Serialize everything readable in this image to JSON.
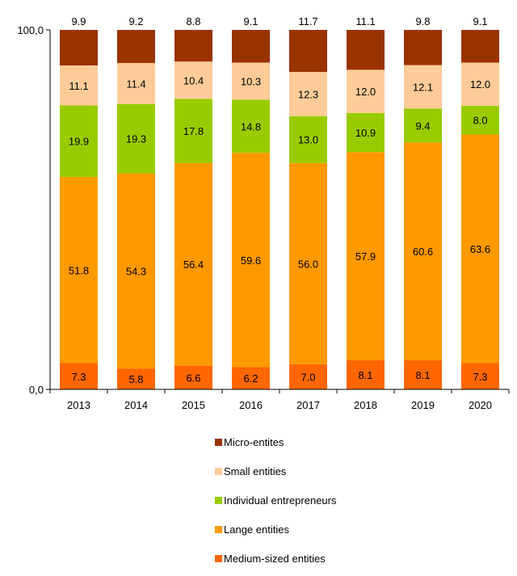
{
  "chart_data": {
    "type": "bar",
    "stacked": true,
    "categories": [
      "2013",
      "2014",
      "2015",
      "2016",
      "2017",
      "2018",
      "2019",
      "2020"
    ],
    "ylim": [
      0,
      100
    ],
    "y_tick_labels": [
      "0,0",
      "100,0"
    ],
    "grid": false,
    "legend_position": "bottom",
    "series": [
      {
        "name": "Medium-sized entities",
        "color": "#FF6600",
        "values": [
          7.3,
          5.8,
          6.6,
          6.2,
          7.0,
          8.1,
          8.1,
          7.3
        ]
      },
      {
        "name": "Lange entities",
        "color": "#FF9900",
        "values": [
          51.8,
          54.3,
          56.4,
          59.6,
          56.0,
          57.9,
          60.6,
          63.6
        ]
      },
      {
        "name": "Individual entrepreneurs",
        "color": "#99CC00",
        "values": [
          19.9,
          19.3,
          17.8,
          14.8,
          13.0,
          10.9,
          9.4,
          8.0
        ]
      },
      {
        "name": "Small entities",
        "color": "#FFCC99",
        "values": [
          11.1,
          11.4,
          10.4,
          10.3,
          12.3,
          12.0,
          12.1,
          12.0
        ]
      },
      {
        "name": "Micro-entites",
        "color": "#993300",
        "values": [
          9.9,
          9.2,
          8.8,
          9.1,
          11.7,
          11.1,
          9.8,
          9.1
        ]
      }
    ],
    "legend_order": [
      "Micro-entites",
      "Small entities",
      "Individual entrepreneurs",
      "Lange entities",
      "Medium-sized entities"
    ]
  }
}
